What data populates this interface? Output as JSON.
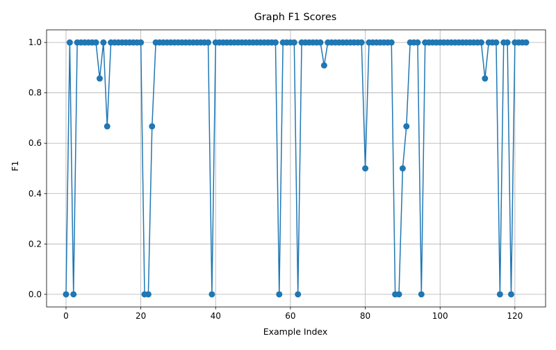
{
  "chart_data": {
    "type": "line",
    "title": "Graph F1 Scores",
    "xlabel": "Example Index",
    "ylabel": "F1",
    "xlim": [
      -5.2,
      128.2
    ],
    "ylim": [
      -0.05,
      1.05
    ],
    "xticks": [
      0,
      20,
      40,
      60,
      80,
      100,
      120
    ],
    "yticks": [
      0.0,
      0.2,
      0.4,
      0.6,
      0.8,
      1.0
    ],
    "xtick_labels": [
      "0",
      "20",
      "40",
      "60",
      "80",
      "100",
      "120"
    ],
    "ytick_labels": [
      "0.0",
      "0.2",
      "0.4",
      "0.6",
      "0.8",
      "1.0"
    ],
    "grid": true,
    "marker": "circle",
    "color": "#1f77b4",
    "series": [
      {
        "values": [
          0,
          1,
          0,
          1,
          1,
          1,
          1,
          1,
          1,
          0.857,
          1,
          0.667,
          1,
          1,
          1,
          1,
          1,
          1,
          1,
          1,
          1,
          0,
          0,
          0.667,
          1,
          1,
          1,
          1,
          1,
          1,
          1,
          1,
          1,
          1,
          1,
          1,
          1,
          1,
          1,
          0,
          1,
          1,
          1,
          1,
          1,
          1,
          1,
          1,
          1,
          1,
          1,
          1,
          1,
          1,
          1,
          1,
          1,
          0,
          1,
          1,
          1,
          1,
          0,
          1,
          1,
          1,
          1,
          1,
          1,
          0.909,
          1,
          1,
          1,
          1,
          1,
          1,
          1,
          1,
          1,
          1,
          0.5,
          1,
          1,
          1,
          1,
          1,
          1,
          1,
          0,
          0,
          0.5,
          0.667,
          1,
          1,
          1,
          0,
          1,
          1,
          1,
          1,
          1,
          1,
          1,
          1,
          1,
          1,
          1,
          1,
          1,
          1,
          1,
          1,
          0.857,
          1,
          1,
          1,
          0,
          1,
          1,
          0,
          1,
          1,
          1,
          1
        ]
      }
    ]
  }
}
